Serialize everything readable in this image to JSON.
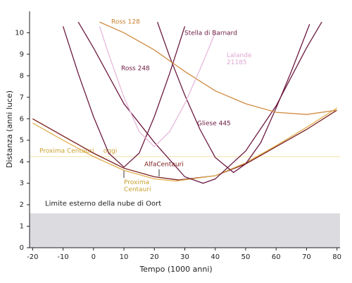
{
  "chart_data": {
    "type": "line",
    "xlabel": "Tempo (1000 anni)",
    "ylabel": "Distanza (anni luce)",
    "xlim": [
      -21,
      81
    ],
    "ylim": [
      0,
      11
    ],
    "xticks": [
      -20,
      -10,
      0,
      10,
      20,
      30,
      40,
      50,
      60,
      70,
      80
    ],
    "yticks": [
      0,
      1,
      2,
      3,
      4,
      5,
      6,
      7,
      8,
      9,
      10
    ],
    "band": {
      "value": 1.6,
      "label": "Limite esterno della nube di Oort",
      "color": "#dcdce0"
    },
    "hline": {
      "value": 4.24,
      "label": "Proxima Centauri",
      "color": "#f0e0a0"
    },
    "annotations": [
      {
        "text": "oggi"
      }
    ],
    "series": [
      {
        "name": "AlfaCentauri",
        "color": "#7a1a1a",
        "x": [
          -20,
          -10,
          0,
          10,
          20,
          28,
          40,
          50,
          60,
          70,
          80
        ],
        "values": [
          6.0,
          5.2,
          4.4,
          3.7,
          3.3,
          3.15,
          3.35,
          3.9,
          4.7,
          5.5,
          6.4
        ]
      },
      {
        "name": "Proxima Centauri",
        "color": "#e0b050",
        "x": [
          -20,
          -10,
          0,
          10,
          20,
          27,
          40,
          50,
          60,
          70,
          80
        ],
        "values": [
          5.8,
          5.0,
          4.24,
          3.6,
          3.2,
          3.1,
          3.35,
          3.95,
          4.75,
          5.6,
          6.5
        ]
      },
      {
        "name": "Stella di Barnard",
        "color": "#6b1a40",
        "x": [
          -10,
          -5,
          0,
          5,
          10,
          15,
          20,
          25,
          30
        ],
        "values": [
          10.3,
          8.1,
          6.1,
          4.4,
          3.75,
          4.4,
          6.1,
          8.1,
          10.3
        ]
      },
      {
        "name": "Ross 248",
        "color": "#6b1a40",
        "x": [
          -5,
          0,
          10,
          20,
          30,
          36,
          40,
          50,
          60,
          70,
          75
        ],
        "values": [
          10.5,
          9.3,
          6.7,
          4.9,
          3.3,
          3.0,
          3.2,
          4.5,
          6.6,
          9.3,
          10.5
        ]
      },
      {
        "name": "Gliese 445",
        "color": "#6b1a40",
        "x": [
          21,
          25,
          30,
          35,
          40,
          46,
          50,
          55,
          60,
          65,
          71
        ],
        "values": [
          10.5,
          8.9,
          7.1,
          5.5,
          4.2,
          3.5,
          3.9,
          4.9,
          6.5,
          8.2,
          10.4
        ]
      },
      {
        "name": "Ross 128",
        "color": "#d08a40",
        "x": [
          2,
          10,
          20,
          30,
          40,
          50,
          60,
          70,
          80
        ],
        "values": [
          10.5,
          10.0,
          9.2,
          8.2,
          7.3,
          6.7,
          6.3,
          6.2,
          6.4
        ]
      },
      {
        "name": "Lalande 21185",
        "color": "#e6b8dc",
        "x": [
          2,
          5,
          10,
          15,
          20,
          25,
          30,
          35,
          40
        ],
        "values": [
          10.3,
          9.0,
          7.0,
          5.4,
          4.7,
          5.4,
          6.7,
          8.3,
          10.0
        ]
      }
    ]
  }
}
